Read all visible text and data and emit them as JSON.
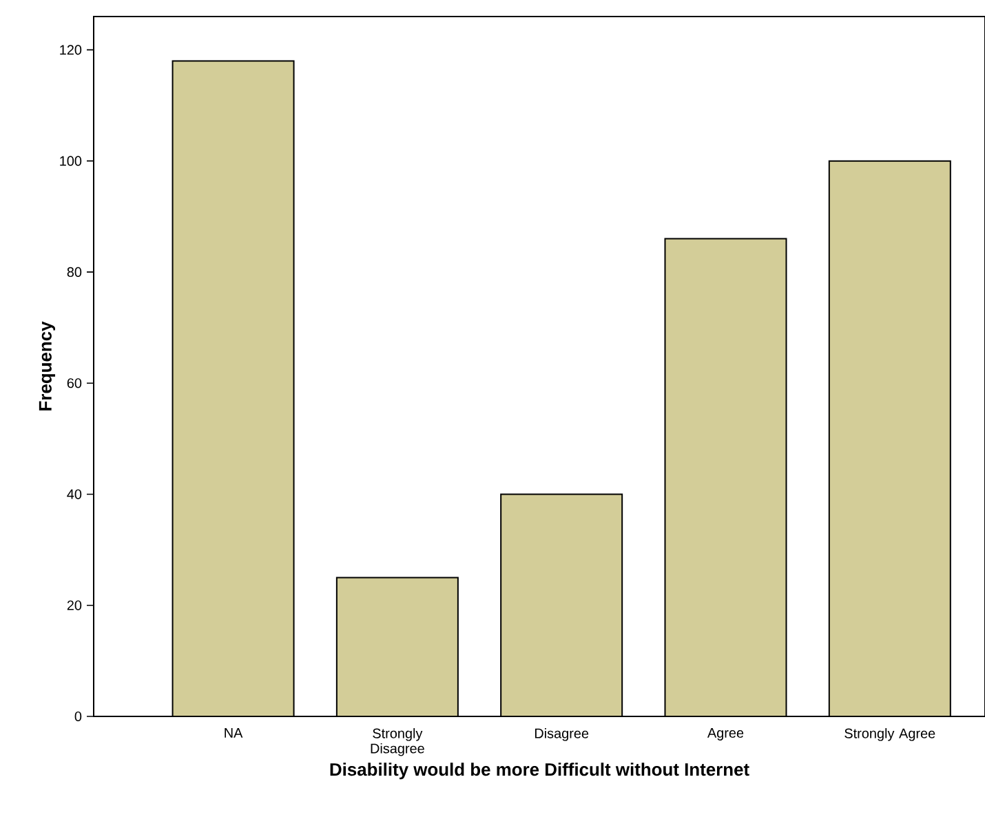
{
  "chart_data": {
    "type": "bar",
    "xlabel": "Disability would be more Difficult without Internet",
    "ylabel": "Frequency",
    "categories": [
      "NA",
      "Strongly Disagree",
      "Disagree",
      "Agree",
      "Strongly Agree"
    ],
    "values": [
      118,
      25,
      40,
      86,
      100
    ],
    "color": "#d3cd98",
    "ylim": [
      0,
      126
    ],
    "yticks": [
      0,
      20,
      40,
      60,
      80,
      100,
      120
    ],
    "grid": false
  }
}
